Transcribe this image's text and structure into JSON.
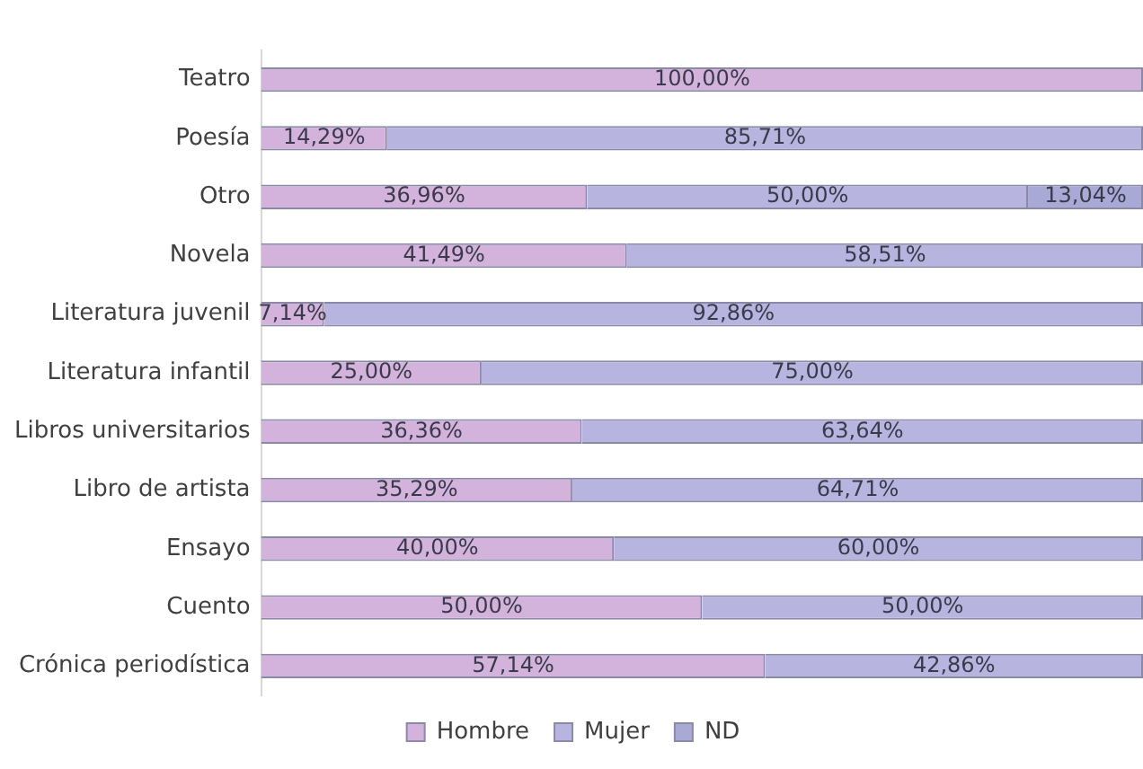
{
  "chart_data": {
    "type": "bar",
    "orientation": "horizontal",
    "stacked": true,
    "categories": [
      "Teatro",
      "Poesía",
      "Otro",
      "Novela",
      "Literatura juvenil",
      "Literatura infantil",
      "Libros universitarios",
      "Libro de artista",
      "Ensayo",
      "Cuento",
      "Crónica periodística"
    ],
    "series": [
      {
        "name": "Hombre",
        "color": "#d3b3dc",
        "values": [
          100,
          14.29,
          36.96,
          41.49,
          7.14,
          25,
          36.36,
          35.29,
          40,
          50,
          57.14
        ],
        "value_labels": [
          "100,00%",
          "14,29%",
          "36,96%",
          "41,49%",
          "7,14%",
          "25,00%",
          "36,36%",
          "35,29%",
          "40,00%",
          "50,00%",
          "57,14%"
        ]
      },
      {
        "name": "Mujer",
        "color": "#b7b5e0",
        "values": [
          null,
          85.71,
          50,
          58.51,
          92.86,
          75,
          63.64,
          64.71,
          60,
          50,
          42.86
        ],
        "value_labels": [
          null,
          "85,71%",
          "50,00%",
          "58,51%",
          "92,86%",
          "75,00%",
          "63,64%",
          "64,71%",
          "60,00%",
          "50,00%",
          "42,86%"
        ]
      },
      {
        "name": "ND",
        "color": "#a9a9d6",
        "values": [
          null,
          null,
          13.04,
          null,
          null,
          null,
          null,
          null,
          null,
          null,
          null
        ],
        "value_labels": [
          null,
          null,
          "13,04%",
          null,
          null,
          null,
          null,
          null,
          null,
          null,
          null
        ]
      }
    ],
    "xlim": [
      0,
      100
    ],
    "tick_labels": "y",
    "grid": false,
    "legend": "bottom"
  }
}
